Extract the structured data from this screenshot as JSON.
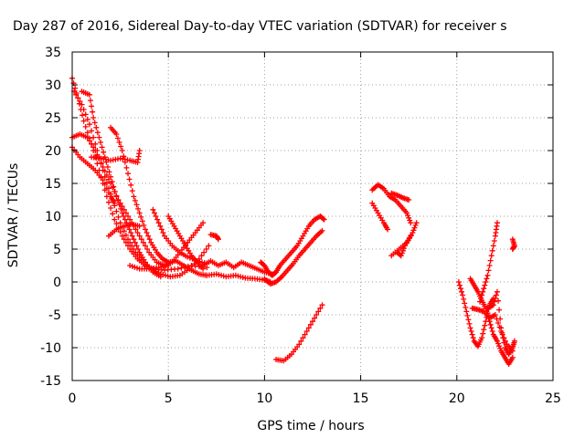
{
  "chart_data": {
    "type": "scatter",
    "title": "Day 287 of 2016, Sidereal Day-to-day VTEC variation (SDTVAR) for receiver s",
    "xlabel": "GPS time / hours",
    "ylabel": "SDTVAR / TECUs",
    "xlim": [
      0,
      25
    ],
    "ylim": [
      -15,
      35
    ],
    "xticks": [
      0,
      5,
      10,
      15,
      20,
      25
    ],
    "yticks": [
      -15,
      -10,
      -5,
      0,
      5,
      10,
      15,
      20,
      25,
      30,
      35
    ],
    "grid": true,
    "marker": "plus",
    "color": "#ff0000",
    "series": [
      {
        "points": [
          [
            0.0,
            31.0
          ],
          [
            0.3,
            28.0
          ],
          [
            0.6,
            24.5
          ],
          [
            1.0,
            21.0
          ],
          [
            1.4,
            17.0
          ],
          [
            1.8,
            13.0
          ],
          [
            2.2,
            9.5
          ],
          [
            2.6,
            7.0
          ],
          [
            3.0,
            5.0
          ],
          [
            3.4,
            3.5
          ],
          [
            3.8,
            2.5
          ],
          [
            4.2,
            2.0
          ],
          [
            4.8,
            1.8
          ],
          [
            5.5,
            2.0
          ],
          [
            6.2,
            2.5
          ],
          [
            7.0,
            2.2
          ]
        ]
      },
      {
        "points": [
          [
            0.1,
            29.0
          ],
          [
            0.5,
            27.0
          ],
          [
            0.9,
            24.0
          ],
          [
            1.3,
            20.0
          ],
          [
            1.7,
            16.0
          ],
          [
            2.1,
            12.5
          ],
          [
            2.5,
            9.0
          ],
          [
            2.9,
            6.5
          ],
          [
            3.3,
            4.5
          ],
          [
            3.7,
            3.0
          ],
          [
            4.1,
            2.0
          ],
          [
            4.6,
            1.2
          ],
          [
            5.1,
            0.8
          ],
          [
            5.6,
            1.0
          ],
          [
            6.1,
            2.0
          ],
          [
            6.6,
            3.5
          ],
          [
            7.1,
            5.5
          ]
        ]
      },
      {
        "points": [
          [
            0.0,
            22.0
          ],
          [
            0.4,
            22.5
          ],
          [
            0.8,
            22.0
          ],
          [
            1.2,
            20.0
          ],
          [
            1.6,
            17.5
          ],
          [
            2.0,
            15.0
          ],
          [
            2.4,
            12.5
          ],
          [
            2.8,
            10.5
          ],
          [
            3.2,
            8.5
          ],
          [
            3.6,
            6.5
          ],
          [
            4.0,
            4.5
          ],
          [
            4.4,
            3.0
          ],
          [
            4.8,
            2.5
          ],
          [
            5.2,
            3.0
          ],
          [
            5.6,
            4.5
          ],
          [
            6.0,
            6.0
          ],
          [
            6.4,
            7.5
          ],
          [
            6.8,
            9.0
          ]
        ]
      },
      {
        "points": [
          [
            0.0,
            20.5
          ],
          [
            0.4,
            19.0
          ],
          [
            0.8,
            18.0
          ],
          [
            1.2,
            17.0
          ],
          [
            1.6,
            15.5
          ],
          [
            2.0,
            13.0
          ],
          [
            2.2,
            12.0
          ]
        ]
      },
      {
        "points": [
          [
            0.5,
            29.0
          ],
          [
            0.9,
            28.5
          ],
          [
            1.1,
            25.0
          ],
          [
            1.4,
            22.0
          ],
          [
            1.7,
            19.0
          ],
          [
            2.0,
            16.0
          ],
          [
            2.3,
            13.0
          ],
          [
            2.6,
            10.5
          ],
          [
            2.9,
            8.5
          ],
          [
            3.2,
            6.5
          ],
          [
            3.5,
            4.5
          ],
          [
            3.8,
            3.0
          ],
          [
            4.2,
            1.5
          ],
          [
            4.6,
            0.8
          ]
        ]
      },
      {
        "points": [
          [
            1.0,
            19.0
          ],
          [
            1.5,
            18.8
          ],
          [
            2.0,
            18.5
          ],
          [
            2.5,
            18.8
          ],
          [
            3.0,
            18.5
          ],
          [
            3.4,
            18.2
          ],
          [
            3.5,
            20.0
          ]
        ]
      },
      {
        "points": [
          [
            2.0,
            23.5
          ],
          [
            2.3,
            22.5
          ],
          [
            2.6,
            20.0
          ],
          [
            2.9,
            16.5
          ],
          [
            3.2,
            13.0
          ],
          [
            3.5,
            10.5
          ],
          [
            3.8,
            8.0
          ],
          [
            4.1,
            6.0
          ],
          [
            4.4,
            4.5
          ],
          [
            4.7,
            3.5
          ],
          [
            5.0,
            3.0
          ],
          [
            5.4,
            3.2
          ],
          [
            5.8,
            2.5
          ],
          [
            6.2,
            1.8
          ],
          [
            6.6,
            1.2
          ],
          [
            7.0,
            1.0
          ]
        ]
      },
      {
        "points": [
          [
            1.9,
            7.0
          ],
          [
            2.3,
            8.0
          ],
          [
            2.7,
            8.5
          ],
          [
            3.1,
            8.8
          ],
          [
            3.5,
            8.5
          ]
        ]
      },
      {
        "points": [
          [
            3.0,
            2.5
          ],
          [
            3.5,
            2.0
          ],
          [
            4.0,
            2.0
          ],
          [
            4.5,
            2.2
          ],
          [
            5.0,
            2.5
          ]
        ]
      },
      {
        "points": [
          [
            4.2,
            11.0
          ],
          [
            4.5,
            9.0
          ],
          [
            4.8,
            7.0
          ],
          [
            5.2,
            5.5
          ],
          [
            5.6,
            4.5
          ],
          [
            6.0,
            3.8
          ],
          [
            6.5,
            3.2
          ],
          [
            7.0,
            2.8
          ]
        ]
      },
      {
        "points": [
          [
            5.0,
            10.0
          ],
          [
            5.3,
            8.5
          ],
          [
            5.6,
            7.0
          ],
          [
            5.9,
            5.5
          ],
          [
            6.2,
            4.0
          ],
          [
            6.5,
            3.0
          ],
          [
            6.8,
            2.0
          ]
        ]
      },
      {
        "points": [
          [
            6.8,
            2.5
          ],
          [
            7.2,
            3.2
          ],
          [
            7.6,
            2.5
          ],
          [
            8.0,
            3.0
          ],
          [
            8.4,
            2.2
          ],
          [
            8.8,
            3.0
          ],
          [
            9.2,
            2.5
          ],
          [
            9.6,
            2.0
          ],
          [
            10.0,
            1.5
          ],
          [
            10.4,
            1.2
          ]
        ]
      },
      {
        "points": [
          [
            7.0,
            1.0
          ],
          [
            7.5,
            1.2
          ],
          [
            8.0,
            0.8
          ],
          [
            8.5,
            1.0
          ],
          [
            9.0,
            0.6
          ],
          [
            9.5,
            0.5
          ],
          [
            10.0,
            0.3
          ],
          [
            10.3,
            0.0
          ]
        ]
      },
      {
        "points": [
          [
            7.2,
            7.2
          ],
          [
            7.5,
            7.0
          ],
          [
            7.6,
            6.5
          ]
        ]
      },
      {
        "points": [
          [
            9.8,
            3.0
          ],
          [
            10.0,
            2.5
          ],
          [
            10.2,
            1.5
          ],
          [
            10.4,
            1.0
          ],
          [
            10.6,
            1.5
          ],
          [
            10.8,
            2.5
          ],
          [
            11.1,
            3.5
          ],
          [
            11.4,
            4.5
          ],
          [
            11.7,
            5.5
          ],
          [
            12.0,
            7.0
          ],
          [
            12.3,
            8.5
          ],
          [
            12.6,
            9.5
          ],
          [
            12.9,
            10.0
          ],
          [
            13.1,
            9.5
          ]
        ]
      },
      {
        "points": [
          [
            10.0,
            0.5
          ],
          [
            10.3,
            -0.3
          ],
          [
            10.6,
            0.0
          ],
          [
            10.9,
            0.8
          ],
          [
            11.2,
            1.8
          ],
          [
            11.5,
            2.8
          ],
          [
            11.8,
            4.0
          ],
          [
            12.1,
            5.0
          ],
          [
            12.4,
            6.0
          ],
          [
            12.7,
            7.0
          ],
          [
            13.0,
            7.8
          ]
        ]
      },
      {
        "points": [
          [
            10.6,
            -11.8
          ],
          [
            11.0,
            -12.0
          ],
          [
            11.4,
            -11.0
          ],
          [
            11.8,
            -9.5
          ],
          [
            12.2,
            -7.5
          ],
          [
            12.6,
            -5.5
          ],
          [
            13.0,
            -3.5
          ]
        ]
      },
      {
        "points": [
          [
            15.6,
            14.0
          ],
          [
            15.9,
            14.8
          ],
          [
            16.2,
            14.2
          ],
          [
            16.5,
            13.0
          ],
          [
            16.8,
            12.5
          ],
          [
            17.1,
            11.5
          ],
          [
            17.4,
            10.5
          ],
          [
            17.6,
            9.0
          ]
        ]
      },
      {
        "points": [
          [
            15.6,
            12.0
          ],
          [
            15.9,
            10.5
          ],
          [
            16.2,
            9.0
          ],
          [
            16.4,
            8.0
          ]
        ]
      },
      {
        "points": [
          [
            16.6,
            13.5
          ],
          [
            16.9,
            13.2
          ],
          [
            17.2,
            12.8
          ],
          [
            17.5,
            12.5
          ]
        ]
      },
      {
        "points": [
          [
            16.6,
            4.0
          ],
          [
            17.0,
            5.0
          ],
          [
            17.4,
            6.0
          ],
          [
            17.7,
            7.5
          ],
          [
            17.9,
            9.0
          ]
        ]
      },
      {
        "points": [
          [
            16.9,
            4.5
          ],
          [
            17.1,
            4.0
          ],
          [
            17.3,
            5.5
          ],
          [
            17.6,
            7.0
          ]
        ]
      },
      {
        "points": [
          [
            20.1,
            0.0
          ],
          [
            20.3,
            -2.0
          ],
          [
            20.5,
            -4.5
          ],
          [
            20.7,
            -7.0
          ],
          [
            20.9,
            -9.0
          ],
          [
            21.1,
            -9.8
          ],
          [
            21.3,
            -8.5
          ],
          [
            21.5,
            -6.0
          ],
          [
            21.7,
            -3.5
          ],
          [
            21.9,
            -2.5
          ]
        ]
      },
      {
        "points": [
          [
            20.7,
            0.5
          ],
          [
            20.9,
            -0.5
          ],
          [
            21.1,
            -1.5
          ],
          [
            21.3,
            -2.8
          ],
          [
            21.5,
            -4.0
          ],
          [
            21.7,
            -6.0
          ],
          [
            21.9,
            -8.0
          ],
          [
            22.1,
            -9.0
          ],
          [
            22.3,
            -10.5
          ],
          [
            22.5,
            -11.5
          ],
          [
            22.7,
            -12.5
          ],
          [
            22.9,
            -11.5
          ]
        ]
      },
      {
        "points": [
          [
            20.8,
            -4.0
          ],
          [
            21.1,
            -4.2
          ],
          [
            21.4,
            -4.5
          ],
          [
            21.7,
            -5.5
          ],
          [
            22.0,
            -5.0
          ],
          [
            22.3,
            -7.5
          ],
          [
            22.6,
            -9.5
          ],
          [
            22.9,
            -10.5
          ]
        ]
      },
      {
        "points": [
          [
            21.2,
            -3.0
          ],
          [
            21.4,
            -1.0
          ],
          [
            21.6,
            1.0
          ],
          [
            21.8,
            4.0
          ],
          [
            22.0,
            7.0
          ],
          [
            22.1,
            9.0
          ]
        ]
      },
      {
        "points": [
          [
            21.6,
            -4.0
          ],
          [
            21.9,
            -3.5
          ],
          [
            22.1,
            -1.5
          ],
          [
            22.3,
            -7.0
          ],
          [
            22.5,
            -10.0
          ],
          [
            22.7,
            -11.0
          ],
          [
            22.9,
            -10.0
          ],
          [
            23.0,
            -9.0
          ]
        ]
      },
      {
        "points": [
          [
            22.9,
            6.5
          ],
          [
            23.0,
            5.5
          ],
          [
            22.9,
            5.0
          ]
        ]
      }
    ]
  }
}
